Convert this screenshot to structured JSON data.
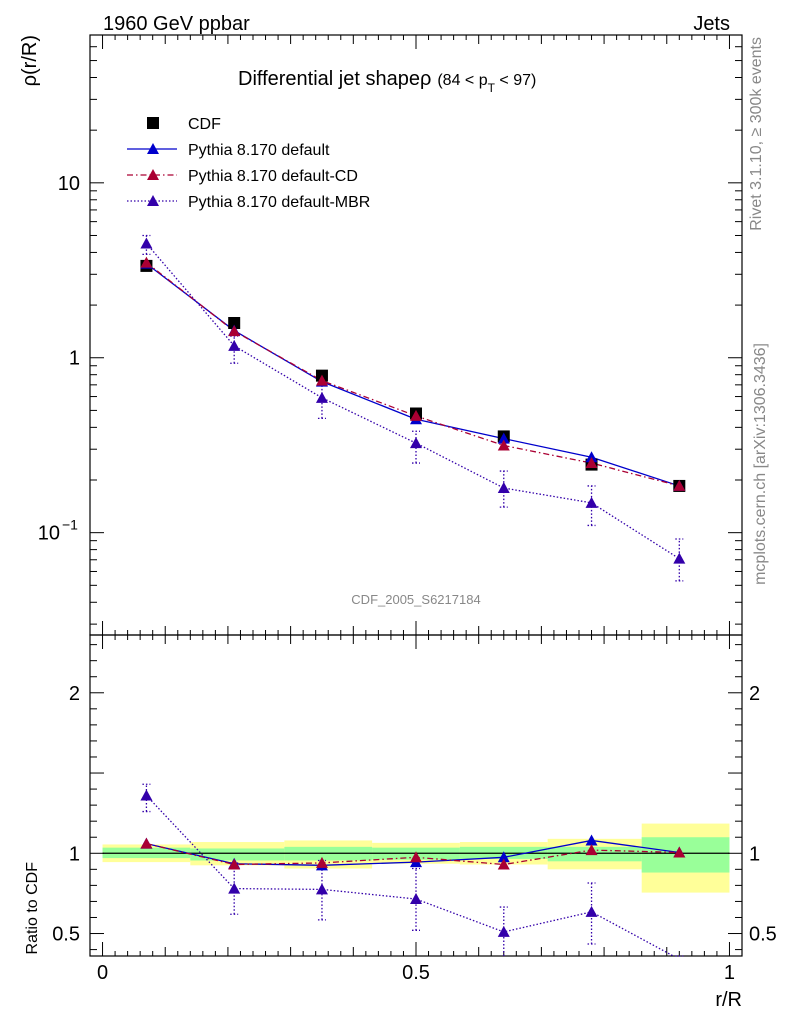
{
  "header": {
    "left": "1960 GeV ppbar",
    "right": "Jets"
  },
  "side_labels": {
    "rivet": "Rivet 3.1.10, ≥ 300k events",
    "mcplots": "mcplots.cern.ch [arXiv:1306.3436]"
  },
  "colors": {
    "cdf": "#000000",
    "default": "#0000cc",
    "default_cd": "#aa0033",
    "default_mbr": "#3300aa",
    "band_inner": "#99ff99",
    "band_outer": "#ffff99"
  },
  "chart_data": [
    {
      "type": "line",
      "title": "Differential jet shapeρ",
      "title_suffix": "(84 < p",
      "title_sub": "T",
      "title_end": " < 97)",
      "ylabel": "ρ(r/R)",
      "watermark": "CDF_2005_S6217184",
      "yscale": "log",
      "ylim": [
        0.026,
        70
      ],
      "xlim": [
        -0.02,
        1.02
      ],
      "y_ticks": [
        {
          "value": 10,
          "label": "10"
        },
        {
          "value": 1,
          "label": "1"
        },
        {
          "value": 0.1,
          "label": "10",
          "exp": "−1"
        }
      ],
      "legend_position": "top-left",
      "x": [
        0.07,
        0.21,
        0.35,
        0.5,
        0.64,
        0.78,
        0.92
      ],
      "series": [
        {
          "name": "CDF",
          "style": "square",
          "values": [
            3.35,
            1.58,
            0.79,
            0.48,
            0.355,
            0.245,
            0.185
          ]
        },
        {
          "name": "Pythia 8.170 default",
          "style": "solid",
          "color": "#0000cc",
          "values": [
            3.45,
            1.43,
            0.73,
            0.445,
            0.345,
            0.27,
            0.185
          ]
        },
        {
          "name": "Pythia 8.170 default-CD",
          "style": "dashdot",
          "color": "#aa0033",
          "values": [
            3.5,
            1.42,
            0.74,
            0.465,
            0.315,
            0.25,
            0.185
          ]
        },
        {
          "name": "Pythia 8.170 default-MBR",
          "style": "dotted",
          "color": "#3300aa",
          "values": [
            4.5,
            1.17,
            0.59,
            0.325,
            0.18,
            0.148,
            0.071
          ],
          "err_low": [
            3.9,
            0.93,
            0.45,
            0.25,
            0.14,
            0.11,
            0.053
          ],
          "err_high": [
            5.0,
            1.33,
            0.73,
            0.38,
            0.225,
            0.185,
            0.092
          ]
        }
      ]
    },
    {
      "type": "line",
      "ylabel": "Ratio to CDF",
      "xlabel": "r/R",
      "ylim": [
        0.36,
        2.36
      ],
      "xlim": [
        -0.02,
        1.02
      ],
      "y_ticks": [
        {
          "value": 2,
          "label": "2"
        },
        {
          "value": 1,
          "label": "1"
        },
        {
          "value": 0.5,
          "label": "0.5"
        }
      ],
      "x_ticks": [
        {
          "value": 0,
          "label": "0"
        },
        {
          "value": 0.5,
          "label": "0.5"
        },
        {
          "value": 1,
          "label": "1"
        }
      ],
      "bands": [
        {
          "x0": 0.0,
          "x1": 0.14,
          "inner": [
            0.97,
            1.035
          ],
          "outer": [
            0.945,
            1.055
          ]
        },
        {
          "x0": 0.14,
          "x1": 0.29,
          "inner": [
            0.955,
            1.03
          ],
          "outer": [
            0.925,
            1.07
          ]
        },
        {
          "x0": 0.29,
          "x1": 0.43,
          "inner": [
            0.955,
            1.04
          ],
          "outer": [
            0.905,
            1.08
          ]
        },
        {
          "x0": 0.43,
          "x1": 0.57,
          "inner": [
            0.96,
            1.035
          ],
          "outer": [
            0.935,
            1.065
          ]
        },
        {
          "x0": 0.57,
          "x1": 0.71,
          "inner": [
            0.965,
            1.04
          ],
          "outer": [
            0.93,
            1.07
          ]
        },
        {
          "x0": 0.71,
          "x1": 0.86,
          "inner": [
            0.95,
            1.04
          ],
          "outer": [
            0.9,
            1.09
          ]
        },
        {
          "x0": 0.86,
          "x1": 1.0,
          "inner": [
            0.88,
            1.1
          ],
          "outer": [
            0.755,
            1.185
          ]
        }
      ],
      "x": [
        0.07,
        0.21,
        0.35,
        0.5,
        0.64,
        0.78,
        0.92
      ],
      "series": [
        {
          "name": "Pythia 8.170 default",
          "style": "solid",
          "color": "#0000cc",
          "values": [
            1.06,
            0.935,
            0.925,
            0.945,
            0.975,
            1.08,
            1.005
          ]
        },
        {
          "name": "Pythia 8.170 default-CD",
          "style": "dashdot",
          "color": "#aa0033",
          "values": [
            1.06,
            0.93,
            0.94,
            0.975,
            0.93,
            1.02,
            1.005
          ]
        },
        {
          "name": "Pythia 8.170 default-MBR",
          "style": "dotted",
          "color": "#3300aa",
          "values": [
            1.36,
            0.78,
            0.775,
            0.715,
            0.51,
            0.635,
            0.34
          ],
          "err_low": [
            1.26,
            0.62,
            0.585,
            0.52,
            0.36,
            0.435,
            0.33
          ],
          "err_high": [
            1.43,
            0.94,
            0.955,
            0.905,
            0.665,
            0.815,
            0.36
          ]
        }
      ]
    }
  ]
}
